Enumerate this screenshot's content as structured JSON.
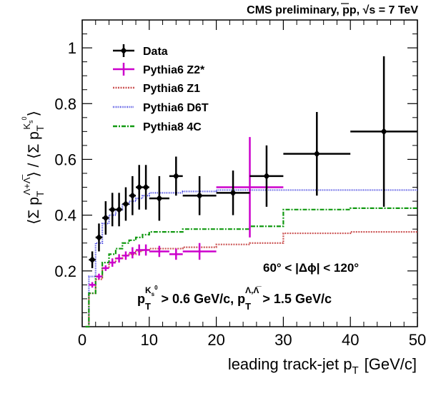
{
  "header": {
    "title_pre": "CMS preliminary, pp, ",
    "title_sqrt": "√s",
    "title_post": " = 7 TeV"
  },
  "axes": {
    "xlabel_main": "leading track-jet p",
    "xlabel_sub": "T",
    "xlabel_unit": "[GeV/c]",
    "ylabel_part1": "⟨Σ p",
    "ylabel_sub1": "T",
    "ylabel_sup1": "Λ+Λ̅",
    "ylabel_part2": "⟩ / ⟨Σ p",
    "ylabel_sub2": "T",
    "ylabel_sup2": "K",
    "ylabel_sup2_sub": "s",
    "ylabel_sup2_sup": "0",
    "ylabel_end": "⟩"
  },
  "annotations": {
    "dphi": "60° < |Δϕ| < 120°",
    "cut_p": "p",
    "cut_T1": "T",
    "cut_K": "K",
    "cut_s": "s",
    "cut_0": "0",
    "cut_mid": " > 0.6 GeV/c, p",
    "cut_T2": "T",
    "cut_lam": "Λ,Λ̅",
    "cut_end": " > 1.5 GeV/c"
  },
  "chart_data": {
    "type": "line",
    "xlim": [
      0,
      50
    ],
    "ylim": [
      0,
      1.1
    ],
    "xticks": [
      0,
      10,
      20,
      30,
      40,
      50
    ],
    "xtick_labels": [
      "0",
      "10",
      "20",
      "30",
      "40",
      "50"
    ],
    "yticks": [
      0.2,
      0.4,
      0.6,
      0.8,
      1.0
    ],
    "ytick_labels": [
      "0.2",
      "0.4",
      "0.6",
      "0.8",
      "1"
    ],
    "legend_position": "top-left",
    "series": [
      {
        "name": "Data",
        "kind": "points",
        "color": "#000000",
        "points": [
          {
            "x": 1.5,
            "y": 0.24,
            "xerr": 0.5,
            "yerr": 0.03
          },
          {
            "x": 2.5,
            "y": 0.32,
            "xerr": 0.5,
            "yerr": 0.05
          },
          {
            "x": 3.5,
            "y": 0.39,
            "xerr": 0.5,
            "yerr": 0.06
          },
          {
            "x": 4.5,
            "y": 0.42,
            "xerr": 0.5,
            "yerr": 0.06
          },
          {
            "x": 5.5,
            "y": 0.42,
            "xerr": 0.5,
            "yerr": 0.06
          },
          {
            "x": 6.5,
            "y": 0.44,
            "xerr": 0.5,
            "yerr": 0.06
          },
          {
            "x": 7.5,
            "y": 0.47,
            "xerr": 0.5,
            "yerr": 0.07
          },
          {
            "x": 8.5,
            "y": 0.5,
            "xerr": 0.5,
            "yerr": 0.08
          },
          {
            "x": 9.5,
            "y": 0.5,
            "xerr": 0.5,
            "yerr": 0.08
          },
          {
            "x": 11.5,
            "y": 0.46,
            "xerr": 1.5,
            "yerr": 0.08
          },
          {
            "x": 14,
            "y": 0.54,
            "xerr": 1.0,
            "yerr": 0.07
          },
          {
            "x": 17.5,
            "y": 0.47,
            "xerr": 2.5,
            "yerr": 0.07
          },
          {
            "x": 22.5,
            "y": 0.48,
            "xerr": 2.5,
            "yerr": 0.08
          },
          {
            "x": 27.5,
            "y": 0.54,
            "xerr": 2.5,
            "yerr": 0.11
          },
          {
            "x": 35,
            "y": 0.62,
            "xerr": 5.0,
            "yerr": 0.15
          },
          {
            "x": 45,
            "y": 0.7,
            "xerr": 5.0,
            "yerr": 0.27
          }
        ]
      },
      {
        "name": "Pythia6 Z2*",
        "kind": "points",
        "color": "#cc00cc",
        "points": [
          {
            "x": 1.5,
            "y": 0.15,
            "xerr": 0.5,
            "yerr": 0.01
          },
          {
            "x": 2.5,
            "y": 0.18,
            "xerr": 0.5,
            "yerr": 0.01
          },
          {
            "x": 3.5,
            "y": 0.21,
            "xerr": 0.5,
            "yerr": 0.01
          },
          {
            "x": 4.5,
            "y": 0.23,
            "xerr": 0.5,
            "yerr": 0.015
          },
          {
            "x": 5.5,
            "y": 0.245,
            "xerr": 0.5,
            "yerr": 0.015
          },
          {
            "x": 6.5,
            "y": 0.255,
            "xerr": 0.5,
            "yerr": 0.015
          },
          {
            "x": 7.5,
            "y": 0.265,
            "xerr": 0.5,
            "yerr": 0.02
          },
          {
            "x": 8.5,
            "y": 0.275,
            "xerr": 0.5,
            "yerr": 0.02
          },
          {
            "x": 9.5,
            "y": 0.275,
            "xerr": 0.5,
            "yerr": 0.02
          },
          {
            "x": 11.5,
            "y": 0.27,
            "xerr": 1.5,
            "yerr": 0.02
          },
          {
            "x": 14,
            "y": 0.26,
            "xerr": 1.0,
            "yerr": 0.02
          },
          {
            "x": 17.5,
            "y": 0.27,
            "xerr": 2.5,
            "yerr": 0.03
          },
          {
            "x": 25,
            "y": 0.5,
            "xerr": 5.0,
            "yerr": 0.18
          }
        ]
      },
      {
        "name": "Pythia6 Z1",
        "kind": "step",
        "color": "#cc5555",
        "dash": "2,1.5",
        "bins": [
          0.5,
          1,
          2,
          3,
          4,
          5,
          6,
          7,
          8,
          9,
          10,
          13,
          15,
          20,
          25,
          30,
          40,
          50
        ],
        "values": [
          0.0,
          0.12,
          0.17,
          0.21,
          0.23,
          0.245,
          0.255,
          0.26,
          0.27,
          0.275,
          0.28,
          0.28,
          0.285,
          0.295,
          0.3,
          0.335,
          0.34
        ]
      },
      {
        "name": "Pythia6 D6T",
        "kind": "step",
        "color": "#3333dd",
        "dash": "1,1.5",
        "bins": [
          0.5,
          1,
          2,
          3,
          4,
          5,
          6,
          7,
          8,
          9,
          10,
          13,
          15,
          20,
          25,
          30,
          40,
          50
        ],
        "values": [
          0.0,
          0.18,
          0.3,
          0.37,
          0.4,
          0.42,
          0.44,
          0.45,
          0.46,
          0.47,
          0.48,
          0.48,
          0.485,
          0.49,
          0.49,
          0.49,
          0.49
        ]
      },
      {
        "name": "Pythia8 4C",
        "kind": "step",
        "color": "#119911",
        "dash": "6,2,2,2",
        "bins": [
          0.5,
          1,
          2,
          3,
          4,
          5,
          6,
          7,
          8,
          9,
          10,
          13,
          15,
          20,
          25,
          30,
          40,
          50
        ],
        "values": [
          0.0,
          0.12,
          0.18,
          0.23,
          0.26,
          0.28,
          0.3,
          0.31,
          0.32,
          0.33,
          0.34,
          0.34,
          0.35,
          0.35,
          0.36,
          0.42,
          0.425
        ]
      }
    ]
  }
}
